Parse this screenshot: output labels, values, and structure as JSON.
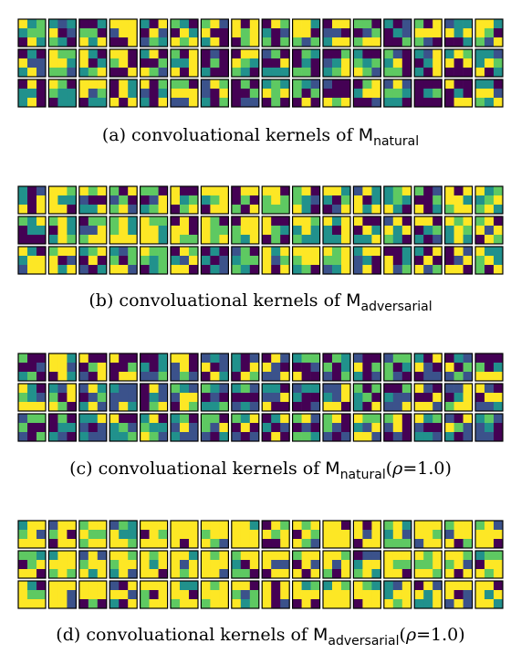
{
  "figure": {
    "panels": [
      {
        "label": "(a)",
        "caption_text": "convoluational kernels of",
        "model_base": "M",
        "model_sub": "natural",
        "suffix_open": "",
        "rho_symbol": "",
        "suffix_rest": ""
      },
      {
        "label": "(b)",
        "caption_text": "convoluational kernels of",
        "model_base": "M",
        "model_sub": "adversarial",
        "suffix_open": "",
        "rho_symbol": "",
        "suffix_rest": ""
      },
      {
        "label": "(c)",
        "caption_text": "convoluational kernels of",
        "model_base": "M",
        "model_sub": "natural",
        "suffix_open": "(",
        "rho_symbol": "ρ",
        "suffix_rest": "=1.0)"
      },
      {
        "label": "(d)",
        "caption_text": "convoluational kernels of",
        "model_base": "M",
        "model_sub": "adversarial",
        "suffix_open": "(",
        "rho_symbol": "ρ",
        "suffix_rest": "=1.0)"
      }
    ],
    "kernel_grid": {
      "rows": 3,
      "cols": 16,
      "kernel_size": 3
    },
    "colormap": [
      "#440154",
      "#3b528b",
      "#21918c",
      "#5ec962",
      "#fde725"
    ]
  }
}
